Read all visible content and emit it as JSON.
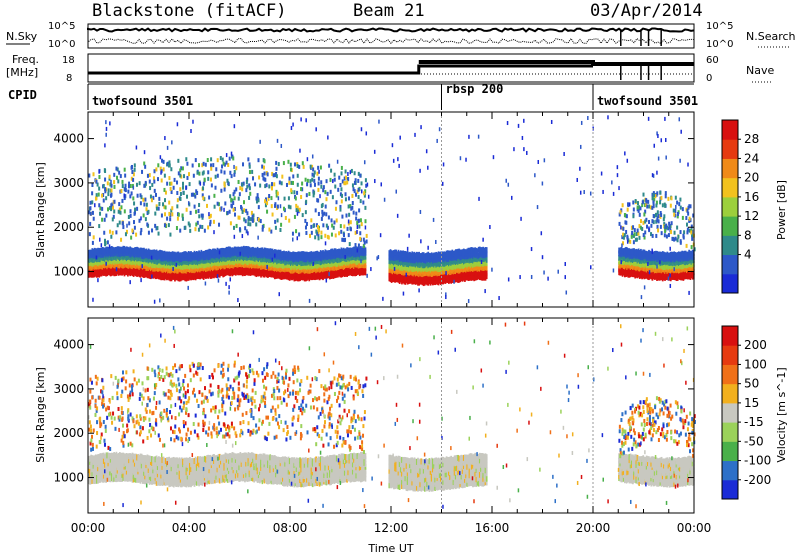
{
  "header": {
    "station": "Blackstone (fitACF)",
    "beam": "Beam 21",
    "date": "03/Apr/2014"
  },
  "noise_panel": {
    "left_label": "N.Sky",
    "right_label": "N.Search",
    "left_ticks": [
      "10^5",
      "10^0"
    ],
    "right_ticks": [
      "10^5",
      "10^0"
    ]
  },
  "freq_panel": {
    "left_label_1": "Freq.",
    "left_label_2": "[MHz]",
    "right_label": "Nave",
    "left_ticks": [
      "18",
      "8"
    ],
    "right_ticks": [
      "60",
      "0"
    ]
  },
  "cpid": {
    "label": "CPID",
    "segments": [
      {
        "text": "twofsound 3501",
        "start_hour": 0
      },
      {
        "text": "rbsp 200",
        "start_hour": 14
      },
      {
        "text": "twofsound 3501",
        "start_hour": 20
      }
    ]
  },
  "chart_data": {
    "type": "heatmap",
    "x_axis": {
      "label": "Time UT",
      "range_hours": [
        0,
        24
      ],
      "ticks": [
        "00:00",
        "04:00",
        "08:00",
        "12:00",
        "16:00",
        "20:00",
        "00:00"
      ]
    },
    "y_axis": {
      "label": "Slant Range [km]",
      "range": [
        200,
        4600
      ],
      "ticks": [
        "1000",
        "2000",
        "3000",
        "4000"
      ]
    },
    "panels": [
      {
        "name": "power",
        "colorbar_label": "Power [dB]",
        "colorbar_ticks": [
          "28",
          "24",
          "20",
          "16",
          "12",
          "8",
          "4"
        ],
        "colors": [
          "#1a2bd6",
          "#2d58c8",
          "#2f8a8a",
          "#49b04a",
          "#9ccf3c",
          "#f2c21e",
          "#f08a18",
          "#e63a10",
          "#d81010"
        ]
      },
      {
        "name": "velocity",
        "colorbar_label": "Velocity [m s^-1]",
        "colorbar_ticks": [
          "200",
          "100",
          "50",
          "15",
          "-15",
          "-50",
          "-100",
          "-200"
        ],
        "colors": [
          "#1a2bd6",
          "#2d70c8",
          "#49b04a",
          "#9bd25a",
          "#c8c8c0",
          "#f2b01e",
          "#f07018",
          "#e63a10",
          "#d81010"
        ]
      }
    ],
    "echo_bands": [
      {
        "start_hour": 0.0,
        "end_hour": 11.0,
        "ground_scatter_km": [
          900,
          1500
        ],
        "ionospheric_km": [
          1700,
          3400
        ]
      },
      {
        "start_hour": 11.9,
        "end_hour": 15.8,
        "ground_scatter_km": [
          800,
          1500
        ],
        "ionospheric_km": []
      },
      {
        "start_hour": 21.0,
        "end_hour": 24.0,
        "ground_scatter_km": [
          900,
          1500
        ],
        "ionospheric_km": [
          1600,
          2600
        ]
      }
    ]
  }
}
